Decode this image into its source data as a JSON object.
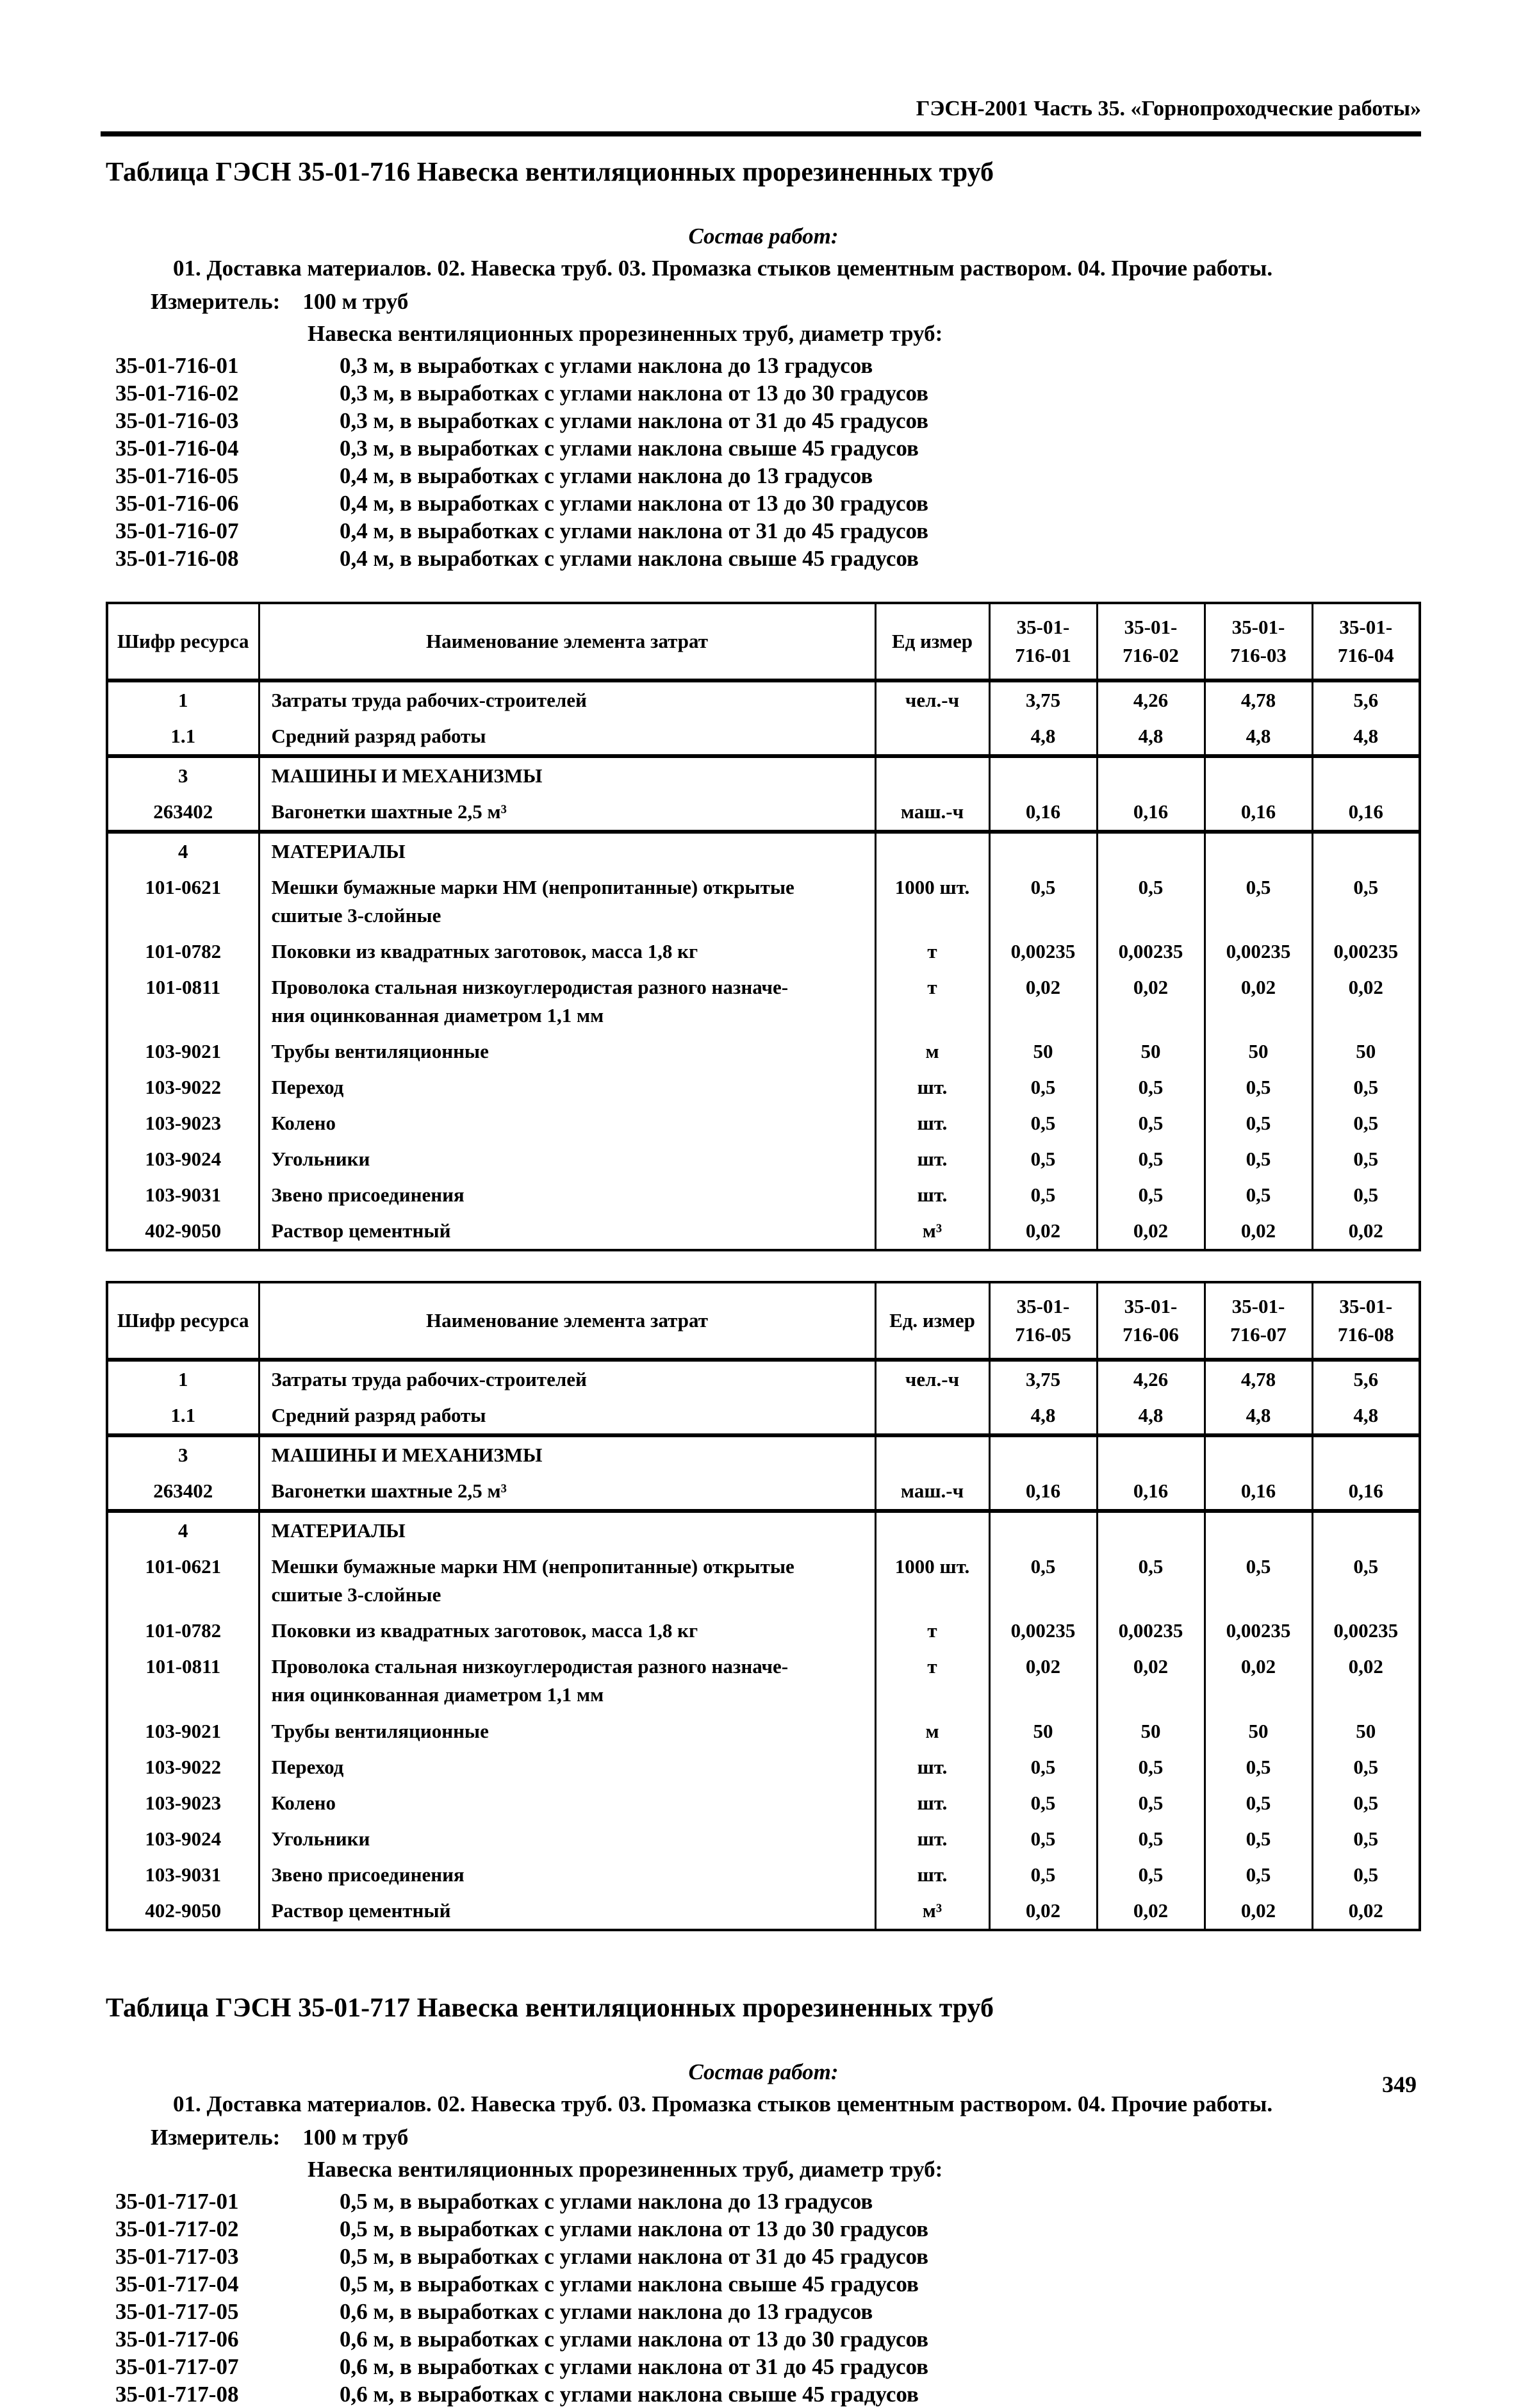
{
  "page": {
    "header": "ГЭСН-2001 Часть 35. «Горнопроходческие работы»",
    "page_number": "349"
  },
  "section1": {
    "title": "Таблица ГЭСН 35-01-716 Навеска вентиляционных прорезиненных труб",
    "sostav_label": "Состав работ:",
    "sostav_text": "01. Доставка материалов. 02. Навеска труб. 03. Промазка стыков цементным раствором. 04. Прочие работы.",
    "izmeritel_label": "Измеритель:",
    "izmeritel_value": "100 м труб",
    "list_intro": "Навеска вентиляционных прорезиненных труб, диаметр труб:",
    "items": [
      {
        "code": "35-01-716-01",
        "desc": "0,3 м, в выработках с углами наклона до 13 градусов"
      },
      {
        "code": "35-01-716-02",
        "desc": "0,3 м, в выработках с углами наклона от 13 до 30 градусов"
      },
      {
        "code": "35-01-716-03",
        "desc": "0,3 м, в выработках с углами наклона от 31 до 45 градусов"
      },
      {
        "code": "35-01-716-04",
        "desc": "0,3 м, в выработках с углами наклона свыше 45 градусов"
      },
      {
        "code": "35-01-716-05",
        "desc": "0,4 м, в выработках с углами наклона до 13 градусов"
      },
      {
        "code": "35-01-716-06",
        "desc": "0,4 м, в выработках с углами наклона от 13 до 30 градусов"
      },
      {
        "code": "35-01-716-07",
        "desc": "0,4 м, в выработках с углами наклона от 31 до 45 градусов"
      },
      {
        "code": "35-01-716-08",
        "desc": "0,4 м, в выработках с углами наклона свыше 45 градусов"
      }
    ]
  },
  "table1": {
    "headers": {
      "resource": "Шифр ресурса",
      "name": "Наименование элемента затрат",
      "unit": "Ед  измер"
    },
    "col_codes": [
      "35-01-\n716-01",
      "35-01-\n716-02",
      "35-01-\n716-03",
      "35-01-\n716-04"
    ],
    "rows": [
      {
        "code": "1",
        "name": "Затраты труда рабочих-строителей",
        "unit": "чел.-ч",
        "values": [
          "3,75",
          "4,26",
          "4,78",
          "5,6"
        ],
        "section": true
      },
      {
        "code": "1.1",
        "name": "Средний разряд работы",
        "unit": "",
        "values": [
          "4,8",
          "4,8",
          "4,8",
          "4,8"
        ]
      },
      {
        "code": "3",
        "name": "МАШИНЫ И МЕХАНИЗМЫ",
        "unit": "",
        "values": [
          "",
          "",
          "",
          ""
        ],
        "section": true,
        "bold": true
      },
      {
        "code": "263402",
        "name": "Вагонетки шахтные 2,5 м³",
        "unit": "маш.-ч",
        "values": [
          "0,16",
          "0,16",
          "0,16",
          "0,16"
        ]
      },
      {
        "code": "4",
        "name": "МАТЕРИАЛЫ",
        "unit": "",
        "values": [
          "",
          "",
          "",
          ""
        ],
        "section": true,
        "bold": true
      },
      {
        "code": "101-0621",
        "name": "Мешки бумажные марки НМ (непропитанные) открытые\nсшитые 3-слойные",
        "unit": "1000 шт.",
        "values": [
          "0,5",
          "0,5",
          "0,5",
          "0,5"
        ]
      },
      {
        "code": "101-0782",
        "name": "Поковки из квадратных заготовок, масса 1,8 кг",
        "unit": "т",
        "values": [
          "0,00235",
          "0,00235",
          "0,00235",
          "0,00235"
        ]
      },
      {
        "code": "101-0811",
        "name": "Проволока стальная низкоуглеродистая разного назначе-\nния оцинкованная диаметром 1,1 мм",
        "unit": "т",
        "values": [
          "0,02",
          "0,02",
          "0,02",
          "0,02"
        ]
      },
      {
        "code": "103-9021",
        "name": "Трубы вентиляционные",
        "unit": "м",
        "values": [
          "50",
          "50",
          "50",
          "50"
        ]
      },
      {
        "code": "103-9022",
        "name": "Переход",
        "unit": "шт.",
        "values": [
          "0,5",
          "0,5",
          "0,5",
          "0,5"
        ]
      },
      {
        "code": "103-9023",
        "name": "Колено",
        "unit": "шт.",
        "values": [
          "0,5",
          "0,5",
          "0,5",
          "0,5"
        ]
      },
      {
        "code": "103-9024",
        "name": "Угольники",
        "unit": "шт.",
        "values": [
          "0,5",
          "0,5",
          "0,5",
          "0,5"
        ]
      },
      {
        "code": "103-9031",
        "name": "Звено присоединения",
        "unit": "шт.",
        "values": [
          "0,5",
          "0,5",
          "0,5",
          "0,5"
        ]
      },
      {
        "code": "402-9050",
        "name": "Раствор цементный",
        "unit": "м³",
        "values": [
          "0,02",
          "0,02",
          "0,02",
          "0,02"
        ]
      }
    ]
  },
  "table2": {
    "headers": {
      "resource": "Шифр ресурса",
      "name": "Наименование элемента затрат",
      "unit": "Ед. измер"
    },
    "col_codes": [
      "35-01-\n716-05",
      "35-01-\n716-06",
      "35-01-\n716-07",
      "35-01-\n716-08"
    ],
    "rows": [
      {
        "code": "1",
        "name": "Затраты труда рабочих-строителей",
        "unit": "чел.-ч",
        "values": [
          "3,75",
          "4,26",
          "4,78",
          "5,6"
        ],
        "section": true
      },
      {
        "code": "1.1",
        "name": "Средний разряд работы",
        "unit": "",
        "values": [
          "4,8",
          "4,8",
          "4,8",
          "4,8"
        ]
      },
      {
        "code": "3",
        "name": "МАШИНЫ И МЕХАНИЗМЫ",
        "unit": "",
        "values": [
          "",
          "",
          "",
          ""
        ],
        "section": true,
        "bold": true
      },
      {
        "code": "263402",
        "name": "Вагонетки шахтные 2,5 м³",
        "unit": "маш.-ч",
        "values": [
          "0,16",
          "0,16",
          "0,16",
          "0,16"
        ]
      },
      {
        "code": "4",
        "name": "МАТЕРИАЛЫ",
        "unit": "",
        "values": [
          "",
          "",
          "",
          ""
        ],
        "section": true,
        "bold": true
      },
      {
        "code": "101-0621",
        "name": "Мешки бумажные марки НМ (непропитанные) открытые\nсшитые 3-слойные",
        "unit": "1000 шт.",
        "values": [
          "0,5",
          "0,5",
          "0,5",
          "0,5"
        ]
      },
      {
        "code": "101-0782",
        "name": "Поковки из квадратных заготовок, масса 1,8 кг",
        "unit": "т",
        "values": [
          "0,00235",
          "0,00235",
          "0,00235",
          "0,00235"
        ]
      },
      {
        "code": "101-0811",
        "name": "Проволока стальная низкоуглеродистая разного назначе-\nния оцинкованная диаметром 1,1 мм",
        "unit": "т",
        "values": [
          "0,02",
          "0,02",
          "0,02",
          "0,02"
        ]
      },
      {
        "code": "103-9021",
        "name": "Трубы вентиляционные",
        "unit": "м",
        "values": [
          "50",
          "50",
          "50",
          "50"
        ]
      },
      {
        "code": "103-9022",
        "name": "Переход",
        "unit": "шт.",
        "values": [
          "0,5",
          "0,5",
          "0,5",
          "0,5"
        ]
      },
      {
        "code": "103-9023",
        "name": "Колено",
        "unit": "шт.",
        "values": [
          "0,5",
          "0,5",
          "0,5",
          "0,5"
        ]
      },
      {
        "code": "103-9024",
        "name": "Угольники",
        "unit": "шт.",
        "values": [
          "0,5",
          "0,5",
          "0,5",
          "0,5"
        ]
      },
      {
        "code": "103-9031",
        "name": "Звено присоединения",
        "unit": "шт.",
        "values": [
          "0,5",
          "0,5",
          "0,5",
          "0,5"
        ]
      },
      {
        "code": "402-9050",
        "name": "Раствор цементный",
        "unit": "м³",
        "values": [
          "0,02",
          "0,02",
          "0,02",
          "0,02"
        ]
      }
    ]
  },
  "section2": {
    "title": "Таблица ГЭСН 35-01-717 Навеска вентиляционных прорезиненных труб",
    "sostav_label": "Состав работ:",
    "sostav_text": "01. Доставка материалов. 02. Навеска труб. 03. Промазка стыков цементным раствором. 04. Прочие работы.",
    "izmeritel_label": "Измеритель:",
    "izmeritel_value": "100 м труб",
    "list_intro": "Навеска вентиляционных прорезиненных труб, диаметр труб:",
    "items": [
      {
        "code": "35-01-717-01",
        "desc": "0,5 м, в выработках с углами наклона до 13 градусов"
      },
      {
        "code": "35-01-717-02",
        "desc": "0,5 м, в выработках с углами наклона от 13 до 30 градусов"
      },
      {
        "code": "35-01-717-03",
        "desc": "0,5 м, в выработках с углами наклона от 31 до 45 градусов"
      },
      {
        "code": "35-01-717-04",
        "desc": "0,5 м, в выработках с углами наклона свыше 45 градусов"
      },
      {
        "code": "35-01-717-05",
        "desc": "0,6 м, в выработках с углами наклона до 13 градусов"
      },
      {
        "code": "35-01-717-06",
        "desc": "0,6 м, в выработках с углами наклона от 13 до 30 градусов"
      },
      {
        "code": "35-01-717-07",
        "desc": "0,6 м, в выработках с углами наклона от 31 до 45 градусов"
      },
      {
        "code": "35-01-717-08",
        "desc": "0,6 м, в выработках с углами наклона свыше 45 градусов"
      }
    ]
  }
}
